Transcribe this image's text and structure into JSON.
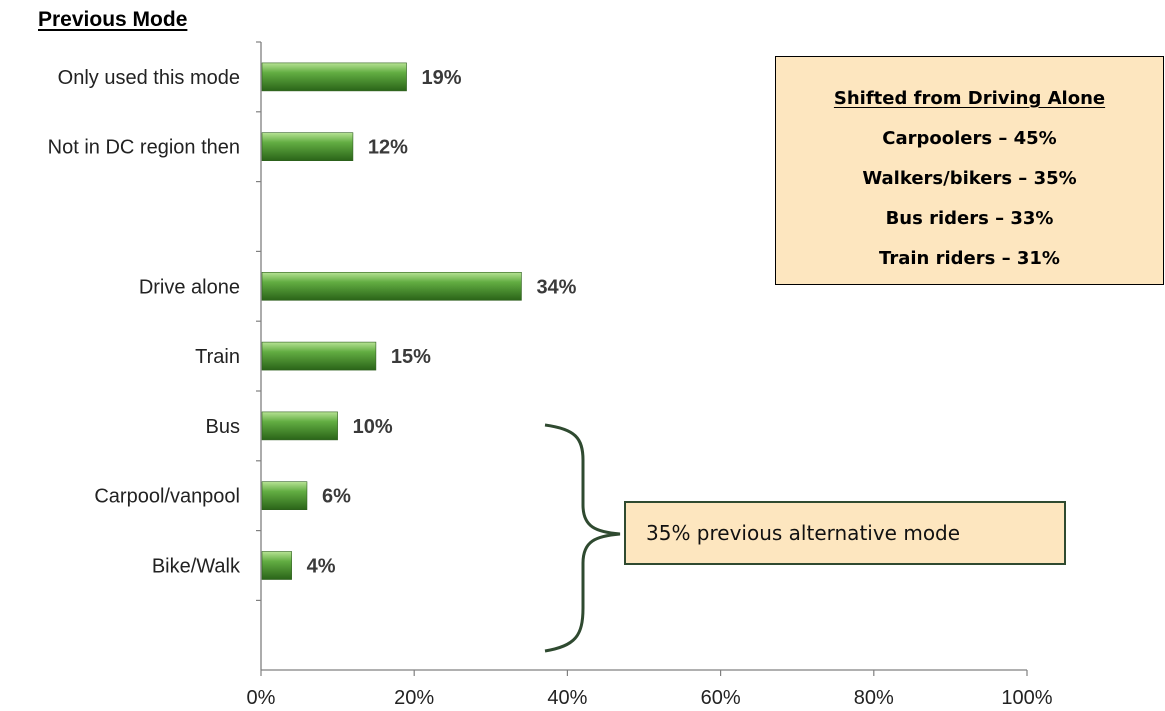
{
  "chart_data": {
    "type": "bar",
    "orientation": "horizontal",
    "title": "Previous Mode",
    "xlabel": "",
    "ylabel": "",
    "xlim": [
      0,
      100
    ],
    "x_ticks": [
      "0%",
      "20%",
      "40%",
      "60%",
      "80%",
      "100%"
    ],
    "categories": [
      "Only used this mode",
      "Not in DC region then",
      "",
      "Drive alone",
      "Train",
      "Bus",
      "Carpool/vanpool",
      "Bike/Walk"
    ],
    "values": [
      19,
      12,
      null,
      34,
      15,
      10,
      6,
      4
    ],
    "value_labels": [
      "19%",
      "12%",
      "",
      "34%",
      "15%",
      "10%",
      "6%",
      "4%"
    ],
    "bar_color": "#3f8f2a",
    "grid": false,
    "legend": "none"
  },
  "callout": {
    "heading": "Shifted from Driving Alone",
    "lines": [
      "Carpoolers – 45%",
      "Walkers/bikers – 35%",
      "Bus riders – 33%",
      "Train riders – 31%"
    ],
    "background": "#fde6bf"
  },
  "bracket_note": {
    "text": "35% previous alternative mode",
    "background": "#fde6bf",
    "bracket_color": "#2f4a30"
  }
}
